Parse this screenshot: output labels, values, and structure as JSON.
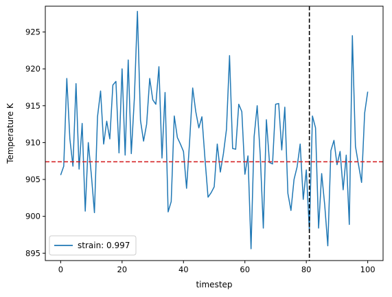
{
  "chart_data": {
    "type": "line",
    "title": "",
    "xlabel": "timestep",
    "ylabel": "Temperature K",
    "xlim": [
      -5,
      105
    ],
    "ylim": [
      894,
      928.5
    ],
    "xticks": [
      0,
      20,
      40,
      60,
      80,
      100
    ],
    "yticks": [
      895,
      900,
      905,
      910,
      915,
      920,
      925
    ],
    "grid": false,
    "legend_position": "lower-left",
    "series": [
      {
        "name": "strain: 0.997",
        "color": "#1f77b4",
        "x": [
          0,
          1,
          2,
          3,
          4,
          5,
          6,
          7,
          8,
          9,
          10,
          11,
          12,
          13,
          14,
          15,
          16,
          17,
          18,
          19,
          20,
          21,
          22,
          23,
          24,
          25,
          26,
          27,
          28,
          29,
          30,
          31,
          32,
          33,
          34,
          35,
          36,
          37,
          38,
          39,
          40,
          41,
          42,
          43,
          44,
          45,
          46,
          47,
          48,
          49,
          50,
          51,
          52,
          53,
          54,
          55,
          56,
          57,
          58,
          59,
          60,
          61,
          62,
          63,
          64,
          65,
          66,
          67,
          68,
          69,
          70,
          71,
          72,
          73,
          74,
          75,
          76,
          77,
          78,
          79,
          80,
          81,
          82,
          83,
          84,
          85,
          86,
          87,
          88,
          89,
          90,
          91,
          92,
          93,
          94,
          95,
          96,
          97,
          98,
          99,
          100
        ],
        "y": [
          905.6,
          906.8,
          918.7,
          910.5,
          906.8,
          918.0,
          906.4,
          912.6,
          900.7,
          910.0,
          905.6,
          900.5,
          913.5,
          917.0,
          909.8,
          912.9,
          910.5,
          917.8,
          918.3,
          908.6,
          920.0,
          908.3,
          921.2,
          908.5,
          916.0,
          927.8,
          913.0,
          910.2,
          912.5,
          918.7,
          915.8,
          915.2,
          920.3,
          907.9,
          916.8,
          900.6,
          902.0,
          913.6,
          910.7,
          909.8,
          908.8,
          903.8,
          910.2,
          917.4,
          914.2,
          912.0,
          913.5,
          907.8,
          902.6,
          903.2,
          904.0,
          909.8,
          906.0,
          908.5,
          911.8,
          921.8,
          909.2,
          909.1,
          915.2,
          914.2,
          905.7,
          908.2,
          895.6,
          910.8,
          915.0,
          908.3,
          898.4,
          913.1,
          907.3,
          907.1,
          915.2,
          915.3,
          909.0,
          914.8,
          903.1,
          900.8,
          905.0,
          906.7,
          909.8,
          902.3,
          906.3,
          898.0,
          913.6,
          912.0,
          898.4,
          905.8,
          901.5,
          896.0,
          908.9,
          910.3,
          907.0,
          908.8,
          903.6,
          908.3,
          898.9,
          924.5,
          909.5,
          907.0,
          904.6,
          914.0,
          916.9
        ]
      }
    ],
    "reference_lines": [
      {
        "orientation": "horizontal",
        "value": 907.4,
        "color": "#d62728",
        "style": "dashed"
      },
      {
        "orientation": "vertical",
        "value": 81,
        "color": "#000000",
        "style": "dashed"
      }
    ]
  }
}
